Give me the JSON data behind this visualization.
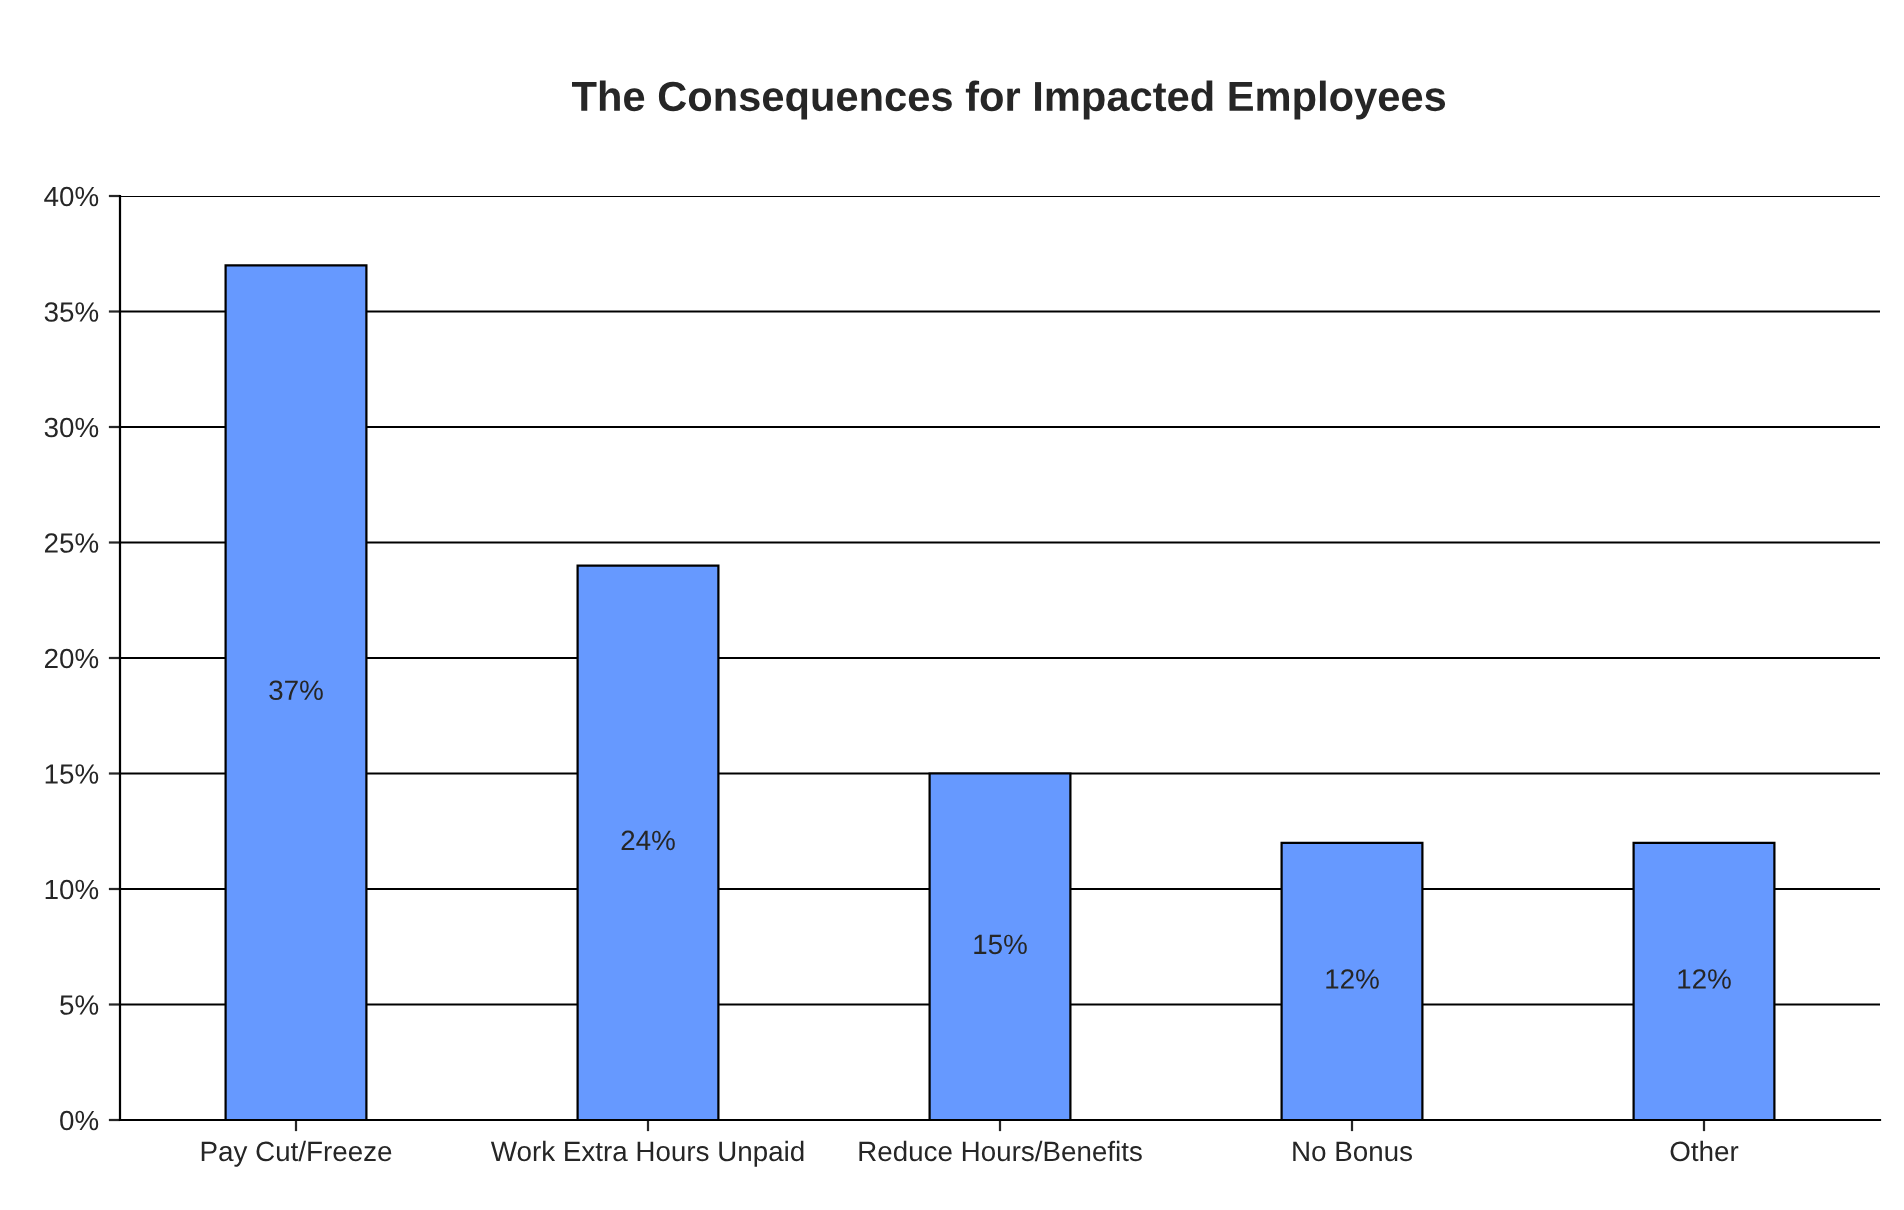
{
  "chart_data": {
    "type": "bar",
    "title": "The Consequences for Impacted Employees",
    "categories": [
      "Pay Cut/Freeze",
      "Work Extra Hours Unpaid",
      "Reduce Hours/Benefits",
      "No Bonus",
      "Other"
    ],
    "values": [
      37,
      24,
      15,
      12,
      12
    ],
    "value_labels": [
      "37%",
      "24%",
      "15%",
      "12%",
      "12%"
    ],
    "color": "#6699ff",
    "ylim": [
      0,
      40
    ],
    "yticks": [
      {
        "value": 0,
        "label": "0%"
      },
      {
        "value": 5,
        "label": "5%"
      },
      {
        "value": 10,
        "label": "10%"
      },
      {
        "value": 15,
        "label": "15%"
      },
      {
        "value": 20,
        "label": "20%"
      },
      {
        "value": 25,
        "label": "25%"
      },
      {
        "value": 30,
        "label": "30%"
      },
      {
        "value": 35,
        "label": "35%"
      },
      {
        "value": 40,
        "label": "40%"
      }
    ],
    "grid": "y"
  }
}
